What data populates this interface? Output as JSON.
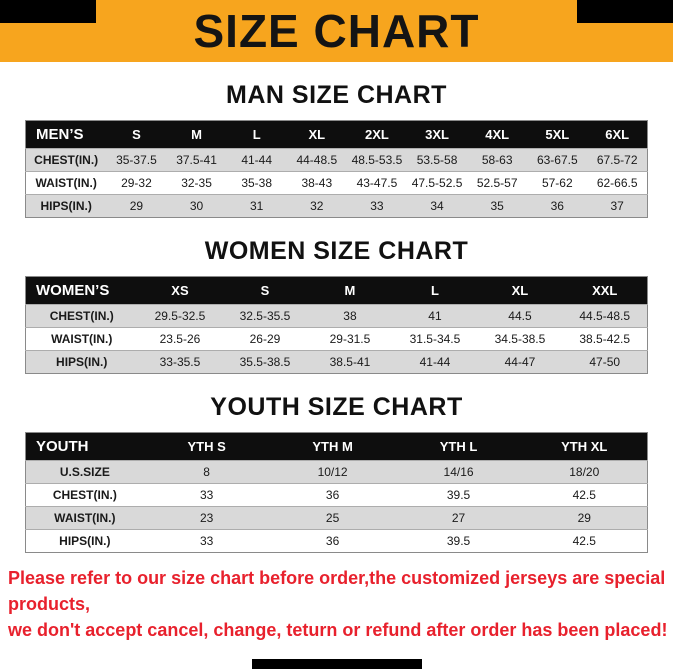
{
  "banner": {
    "title": "SIZE CHART"
  },
  "colors": {
    "banner_bg": "#F7A51E",
    "table_header_bg": "#0E0E0E",
    "row_shade": "#D9D9D9",
    "footer_text": "#E8212D",
    "decor_bars": "#000000"
  },
  "sections": [
    {
      "id": "men",
      "heading": "MAN SIZE CHART",
      "table": {
        "header": [
          "MEN’S",
          "S",
          "M",
          "L",
          "XL",
          "2XL",
          "3XL",
          "4XL",
          "5XL",
          "6XL"
        ],
        "rows": [
          [
            "CHEST(IN.)",
            "35-37.5",
            "37.5-41",
            "41-44",
            "44-48.5",
            "48.5-53.5",
            "53.5-58",
            "58-63",
            "63-67.5",
            "67.5-72"
          ],
          [
            "WAIST(IN.)",
            "29-32",
            "32-35",
            "35-38",
            "38-43",
            "43-47.5",
            "47.5-52.5",
            "52.5-57",
            "57-62",
            "62-66.5"
          ],
          [
            "HIPS(IN.)",
            "29",
            "30",
            "31",
            "32",
            "33",
            "34",
            "35",
            "36",
            "37"
          ]
        ]
      }
    },
    {
      "id": "women",
      "heading": "WOMEN SIZE CHART",
      "table": {
        "header": [
          "WOMEN’S",
          "XS",
          "S",
          "M",
          "L",
          "XL",
          "XXL"
        ],
        "rows": [
          [
            "CHEST(IN.)",
            "29.5-32.5",
            "32.5-35.5",
            "38",
            "41",
            "44.5",
            "44.5-48.5"
          ],
          [
            "WAIST(IN.)",
            "23.5-26",
            "26-29",
            "29-31.5",
            "31.5-34.5",
            "34.5-38.5",
            "38.5-42.5"
          ],
          [
            "HIPS(IN.)",
            "33-35.5",
            "35.5-38.5",
            "38.5-41",
            "41-44",
            "44-47",
            "47-50"
          ]
        ]
      }
    },
    {
      "id": "youth",
      "heading": "YOUTH SIZE CHART",
      "table": {
        "header": [
          "YOUTH",
          "YTH S",
          "YTH M",
          "YTH L",
          "YTH XL"
        ],
        "rows": [
          [
            "U.S.SIZE",
            "8",
            "10/12",
            "14/16",
            "18/20"
          ],
          [
            "CHEST(IN.)",
            "33",
            "36",
            "39.5",
            "42.5"
          ],
          [
            "WAIST(IN.)",
            "23",
            "25",
            "27",
            "29"
          ],
          [
            "HIPS(IN.)",
            "33",
            "36",
            "39.5",
            "42.5"
          ]
        ]
      }
    }
  ],
  "footer": {
    "line1": "Please refer to our size chart before order,the customized jerseys are special products,",
    "line2": "we don't accept cancel, change, teturn or refund after order has been placed!"
  }
}
